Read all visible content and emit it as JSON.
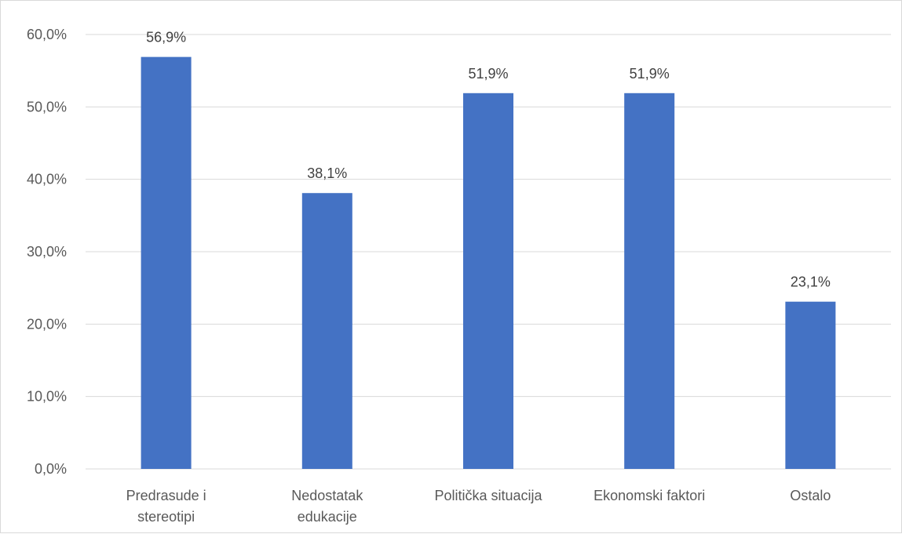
{
  "chart_data": {
    "type": "bar",
    "title": "",
    "xlabel": "",
    "ylabel": "",
    "categories": [
      [
        "Predrasude i",
        "stereotipi"
      ],
      [
        "Nedostatak",
        "edukacije"
      ],
      [
        "Politička situacija"
      ],
      [
        "Ekonomski faktori"
      ],
      [
        "Ostalo"
      ]
    ],
    "values": [
      56.9,
      38.1,
      51.9,
      51.9,
      23.1
    ],
    "data_labels": [
      "56,9%",
      "38,1%",
      "51,9%",
      "51,9%",
      "23,1%"
    ],
    "ylim": [
      0,
      60
    ],
    "yticks": [
      0,
      10,
      20,
      30,
      40,
      50,
      60
    ],
    "ytick_labels": [
      "0,0%",
      "10,0%",
      "20,0%",
      "30,0%",
      "40,0%",
      "50,0%",
      "60,0%"
    ],
    "grid": true,
    "legend": "none",
    "bar_color": "#4472c4",
    "grid_color": "#d9d9d9"
  }
}
